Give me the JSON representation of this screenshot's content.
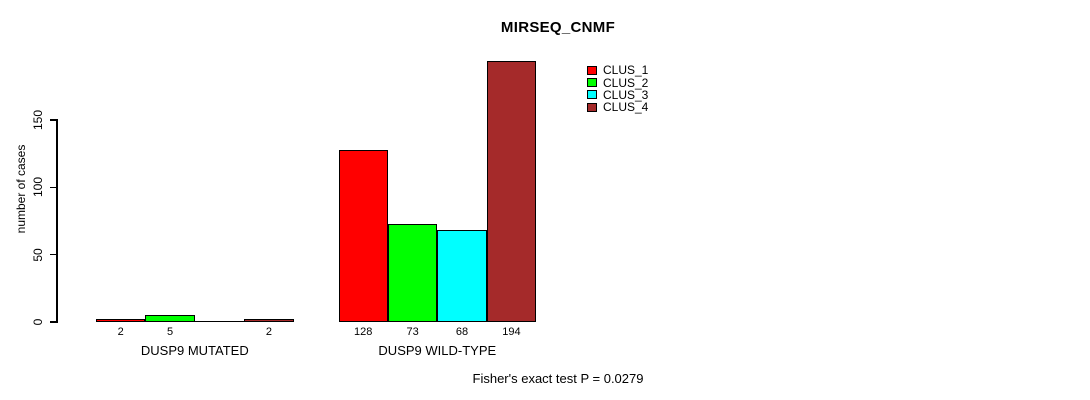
{
  "title": "MIRSEQ_CNMF",
  "annotation": "Fisher's exact test P = 0.0279",
  "chart_data": {
    "type": "bar",
    "title": "MIRSEQ_CNMF",
    "xlabel": "",
    "ylabel": "number of cases",
    "ylim": [
      0,
      150
    ],
    "yticks": [
      0,
      50,
      100,
      150
    ],
    "grid": false,
    "legend_position": "top-right",
    "categories": [
      "DUSP9 MUTATED",
      "DUSP9 WILD-TYPE"
    ],
    "series": [
      {
        "name": "CLUS_1",
        "color": "#ff0000",
        "values": [
          2,
          128
        ]
      },
      {
        "name": "CLUS_2",
        "color": "#00ff00",
        "values": [
          5,
          73
        ]
      },
      {
        "name": "CLUS_3",
        "color": "#00ffff",
        "values": [
          0,
          68
        ]
      },
      {
        "name": "CLUS_4",
        "color": "#a52a2a",
        "values": [
          2,
          194
        ]
      }
    ],
    "bar_value_labels": [
      [
        "2",
        "5",
        "",
        "2"
      ],
      [
        "128",
        "73",
        "68",
        "194"
      ]
    ],
    "annotation": "Fisher's exact test P = 0.0279"
  }
}
